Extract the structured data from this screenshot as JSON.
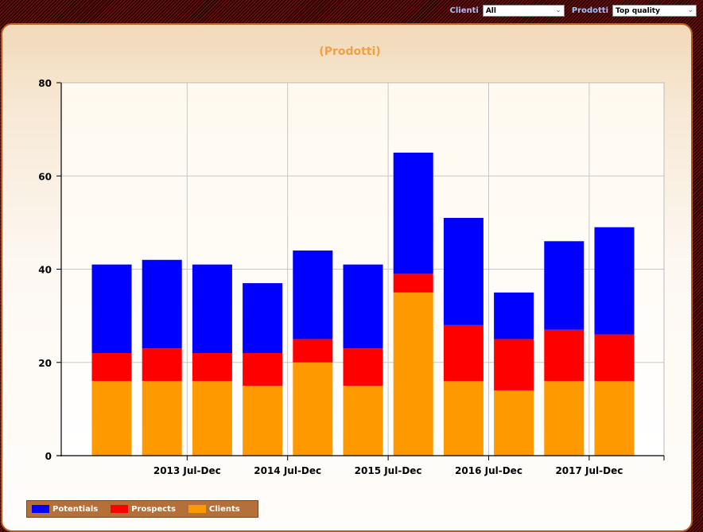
{
  "filters": {
    "clienti_label": "Clienti",
    "clienti_value": "All",
    "prodotti_label": "Prodotti",
    "prodotti_value": "Top quality"
  },
  "colors": {
    "potentials": "#0000ff",
    "prospects": "#ff0000",
    "clients": "#ff9900",
    "title": "#f4a040"
  },
  "chart_data": {
    "type": "bar",
    "stacked": true,
    "title": "(Prodotti)",
    "xlabel": "",
    "ylabel": "",
    "ylim": [
      0,
      80
    ],
    "yticks": [
      0,
      20,
      40,
      60,
      80
    ],
    "grid": true,
    "legend_position": "bottom-left",
    "x_tick_labels": [
      "2013 Jul-Dec",
      "2014 Jul-Dec",
      "2015 Jul-Dec",
      "2016 Jul-Dec",
      "2017 Jul-Dec"
    ],
    "series": [
      {
        "name": "Clients",
        "values": [
          16,
          16,
          16,
          15,
          20,
          15,
          35,
          16,
          14,
          16,
          16
        ]
      },
      {
        "name": "Prospects",
        "values": [
          6,
          7,
          6,
          7,
          5,
          8,
          4,
          12,
          11,
          11,
          10
        ]
      },
      {
        "name": "Potentials",
        "values": [
          19,
          19,
          19,
          15,
          19,
          18,
          26,
          23,
          10,
          19,
          23
        ]
      }
    ],
    "legend": [
      "Potentials",
      "Prospects",
      "Clients"
    ]
  }
}
